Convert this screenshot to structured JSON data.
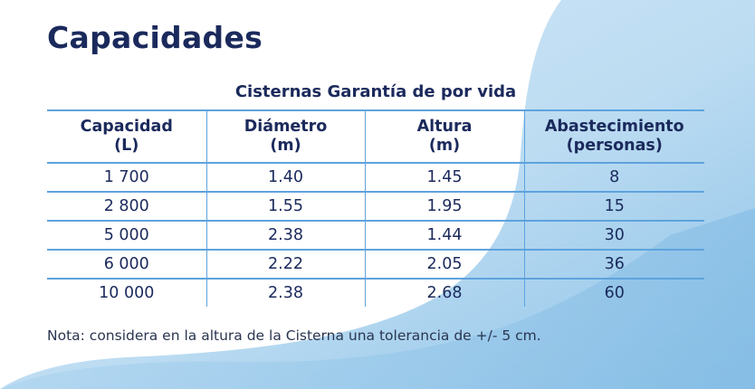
{
  "title": "Capacidades",
  "table": {
    "caption": "Cisternas Garantía de por vida",
    "headers": [
      {
        "line1": "Capacidad",
        "line2": "(L)"
      },
      {
        "line1": "Diámetro",
        "line2": "(m)"
      },
      {
        "line1": "Altura",
        "line2": "(m)"
      },
      {
        "line1": "Abastecimiento",
        "line2": "(personas)"
      }
    ],
    "rows": [
      [
        "1 700",
        "1.40",
        "1.45",
        "8"
      ],
      [
        "2 800",
        "1.55",
        "1.95",
        "15"
      ],
      [
        "5 000",
        "2.38",
        "1.44",
        "30"
      ],
      [
        "6 000",
        "2.22",
        "2.05",
        "36"
      ],
      [
        "10 000",
        "2.38",
        "2.68",
        "60"
      ]
    ]
  },
  "note": "Nota: considera en la altura de la Cisterna una tolerancia de +/- 5 cm.",
  "colors": {
    "text": "#1b2a5c",
    "rule": "#5ea3dd",
    "wave_light": "#d4e8f6",
    "wave_dark": "#8fc4e8"
  }
}
